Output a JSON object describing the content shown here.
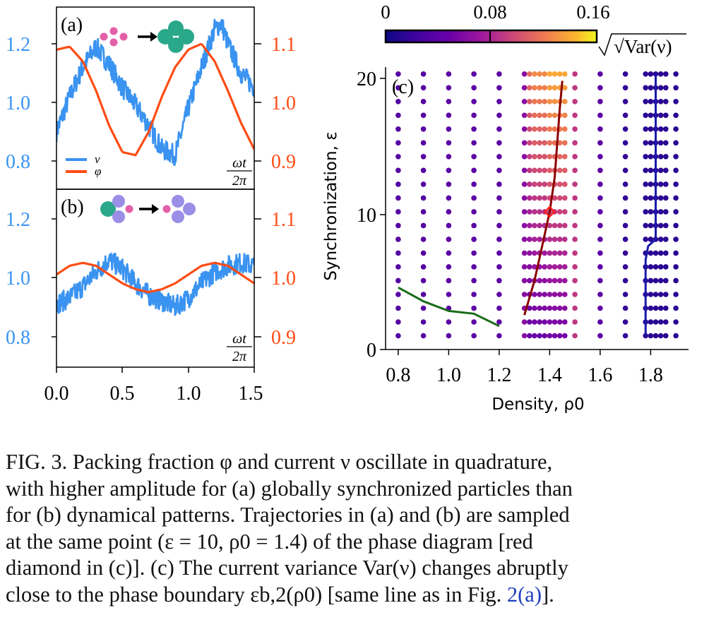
{
  "panel_a": {
    "label": "(a)",
    "legend": [
      "ν",
      "φ"
    ],
    "left_ticks": [
      "1.2",
      "1.0",
      "0.8"
    ],
    "right_ticks": [
      "1.1",
      "1.0",
      "0.9"
    ],
    "xunit_num": "ωt",
    "xunit_den": "2π"
  },
  "panel_b": {
    "label": "(b)",
    "left_ticks": [
      "1.2",
      "1.0",
      "0.8"
    ],
    "right_ticks": [
      "1.1",
      "1.0",
      "0.9"
    ],
    "xunit_num": "ωt",
    "xunit_den": "2π",
    "xticks": [
      "0.0",
      "0.5",
      "1.0",
      "1.5"
    ]
  },
  "panel_c": {
    "label": "(c)",
    "colorbar_ticks": [
      "0",
      "0.08",
      "0.16"
    ],
    "colorbar_label": "√Var(ν)",
    "yticks": [
      "20",
      "10",
      "0"
    ],
    "xticks": [
      "0.8",
      "1.0",
      "1.2",
      "1.4",
      "1.6",
      "1.8"
    ],
    "xlabel": "Density, ρ0",
    "ylabel": "Synchronization, ε"
  },
  "chart_data": [
    {
      "type": "line",
      "panel": "(a)",
      "x_range": [
        0,
        1.5
      ],
      "left_ylim": [
        0.7,
        1.3
      ],
      "right_ylim": [
        0.85,
        1.15
      ],
      "series": [
        {
          "name": "ν",
          "axis": "left",
          "color": "#3a93f0",
          "x": [
            0.0,
            0.1,
            0.2,
            0.3,
            0.4,
            0.5,
            0.6,
            0.7,
            0.8,
            0.9,
            1.0,
            1.1,
            1.2,
            1.25,
            1.3,
            1.4,
            1.5
          ],
          "values": [
            0.9,
            1.02,
            1.12,
            1.19,
            1.13,
            1.05,
            0.99,
            0.92,
            0.84,
            0.82,
            0.98,
            1.12,
            1.25,
            1.27,
            1.2,
            1.1,
            1.05
          ]
        },
        {
          "name": "φ",
          "axis": "right",
          "color": "#ff4c14",
          "x": [
            0.0,
            0.1,
            0.2,
            0.3,
            0.4,
            0.5,
            0.6,
            0.7,
            0.8,
            0.9,
            1.0,
            1.1,
            1.2,
            1.3,
            1.4,
            1.5
          ],
          "values": [
            1.09,
            1.095,
            1.07,
            1.02,
            0.96,
            0.915,
            0.91,
            0.95,
            1.01,
            1.06,
            1.09,
            1.1,
            1.07,
            1.02,
            0.965,
            0.92
          ]
        }
      ]
    },
    {
      "type": "line",
      "panel": "(b)",
      "x_range": [
        0,
        1.5
      ],
      "left_ylim": [
        0.7,
        1.3
      ],
      "right_ylim": [
        0.85,
        1.15
      ],
      "series": [
        {
          "axis": "left",
          "color": "#3a93f0",
          "x": [
            0.0,
            0.1,
            0.2,
            0.3,
            0.4,
            0.5,
            0.6,
            0.7,
            0.8,
            0.9,
            1.0,
            1.1,
            1.2,
            1.3,
            1.4,
            1.5
          ],
          "values": [
            0.91,
            0.93,
            0.97,
            1.02,
            1.06,
            1.03,
            0.98,
            0.94,
            0.92,
            0.9,
            0.93,
            0.98,
            1.02,
            1.04,
            1.05,
            1.04
          ]
        },
        {
          "axis": "right",
          "color": "#ff4c14",
          "x": [
            0.0,
            0.1,
            0.2,
            0.3,
            0.4,
            0.5,
            0.6,
            0.7,
            0.8,
            0.9,
            1.0,
            1.1,
            1.2,
            1.3,
            1.4,
            1.5
          ],
          "values": [
            1.005,
            1.02,
            1.025,
            1.02,
            1.005,
            0.99,
            0.98,
            0.975,
            0.98,
            0.99,
            1.005,
            1.02,
            1.025,
            1.02,
            1.005,
            0.99
          ]
        }
      ]
    },
    {
      "type": "scatter",
      "panel": "(c)",
      "xlim": [
        0.75,
        1.95
      ],
      "ylim": [
        0,
        20.5
      ],
      "clim": [
        0,
        0.18
      ],
      "colormap": "plasma",
      "columns": [
        0.8,
        0.9,
        1.0,
        1.1,
        1.2,
        1.3,
        1.32,
        1.34,
        1.36,
        1.38,
        1.4,
        1.42,
        1.44,
        1.46,
        1.5,
        1.6,
        1.7,
        1.78,
        1.8,
        1.82,
        1.84,
        1.86,
        1.9
      ],
      "column_std": [
        0.04,
        0.04,
        0.045,
        0.045,
        0.045,
        0.07,
        0.1,
        0.11,
        0.11,
        0.11,
        0.12,
        0.12,
        0.12,
        0.12,
        0.1,
        0.045,
        0.02,
        0.015,
        0.015,
        0.015,
        0.015,
        0.015,
        0.015
      ],
      "eps_values": [
        1,
        2,
        3,
        4,
        5,
        6,
        7,
        8,
        9,
        10,
        11,
        12,
        13,
        14,
        15,
        16,
        17,
        18,
        19,
        20
      ],
      "lines": [
        {
          "color": "#1b6b1b",
          "x": [
            0.8,
            0.9,
            1.0,
            1.1,
            1.2
          ],
          "y": [
            4.5,
            3.5,
            2.8,
            2.6,
            1.7
          ]
        },
        {
          "color": "#8b0000",
          "x": [
            1.3,
            1.34,
            1.37,
            1.4,
            1.42,
            1.43,
            1.44,
            1.45
          ],
          "y": [
            2.5,
            5,
            7.5,
            10,
            12.5,
            15,
            17.5,
            19.5
          ]
        },
        {
          "color": "#1a1aa8",
          "x": [
            1.78,
            1.78,
            1.79,
            1.82,
            1.82,
            1.82
          ],
          "y": [
            1,
            6.5,
            7.5,
            8,
            14,
            20
          ]
        }
      ],
      "marker": {
        "x": 1.4,
        "y": 10,
        "shape": "diamond",
        "color": "#ff1a1a"
      }
    }
  ],
  "caption": {
    "lines": [
      "FIG. 3.     Packing fraction φ and current ν oscillate in quadrature,",
      "with higher amplitude for (a) globally synchronized particles than",
      "for (b) dynamical patterns. Trajectories in (a) and (b) are sampled",
      "at the same point (ε = 10, ρ0 = 1.4) of the phase diagram [red",
      "diamond in (c)]. (c) The current variance Var(ν) changes abruptly",
      "close to the phase boundary εb,2(ρ0) [same line as in Fig. "
    ],
    "ref": "2(a)",
    "tail": "]."
  }
}
